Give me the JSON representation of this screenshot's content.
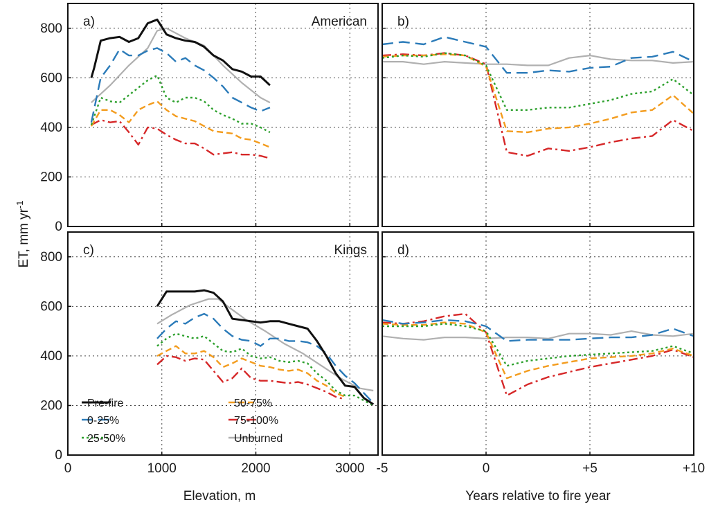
{
  "figure": {
    "ylabel": "ET, mm yr",
    "ylabel_sup": "-1",
    "xlabel_left": "Elevation, m",
    "xlabel_right": "Years relative to fire year"
  },
  "legend": {
    "placement": "bottom-left of panel c",
    "entries": [
      {
        "name": "Pre-fire",
        "color": "#111111",
        "dash": "solid"
      },
      {
        "name": "50-75%",
        "color": "#f39c1e",
        "dash": "dashed"
      },
      {
        "name": "0-25%",
        "color": "#2b7bb9",
        "dash": "long-dash"
      },
      {
        "name": "75-100%",
        "color": "#d62728",
        "dash": "dash-dot"
      },
      {
        "name": "25-50%",
        "color": "#2ca02c",
        "dash": "dotted"
      },
      {
        "name": "Unburned",
        "color": "#b0b0b0",
        "dash": "solid"
      }
    ]
  },
  "chart_data": [
    {
      "panel": "a)",
      "title": "American",
      "type": "line",
      "xlim": [
        0,
        3300
      ],
      "ylim": [
        0,
        900
      ],
      "xticks": [
        0,
        1000,
        2000,
        3000
      ],
      "xtick_labels": [
        "",
        "",
        "",
        ""
      ],
      "yticks": [
        0,
        200,
        400,
        600,
        800
      ],
      "ytick_labels": [
        "0",
        "200",
        "400",
        "600",
        "800"
      ],
      "grid": true,
      "series": [
        {
          "name": "Pre-fire",
          "x": [
            250,
            280,
            350,
            450,
            550,
            650,
            750,
            850,
            950,
            1050,
            1150,
            1250,
            1350,
            1450,
            1550,
            1650,
            1750,
            1850,
            1950,
            2050,
            2150
          ],
          "y": [
            600,
            640,
            750,
            760,
            765,
            745,
            760,
            820,
            835,
            775,
            760,
            750,
            745,
            725,
            690,
            670,
            635,
            625,
            605,
            605,
            570
          ]
        },
        {
          "name": "0-25%",
          "x": [
            250,
            350,
            450,
            550,
            650,
            750,
            850,
            950,
            1050,
            1150,
            1250,
            1350,
            1450,
            1550,
            1650,
            1750,
            1850,
            1950,
            2050,
            2150
          ],
          "y": [
            420,
            600,
            650,
            715,
            690,
            690,
            710,
            720,
            700,
            665,
            680,
            650,
            630,
            600,
            565,
            520,
            500,
            480,
            465,
            480
          ]
        },
        {
          "name": "25-50%",
          "x": [
            250,
            350,
            450,
            550,
            650,
            750,
            850,
            950,
            1050,
            1150,
            1250,
            1350,
            1450,
            1550,
            1650,
            1750,
            1850,
            1950,
            2050,
            2150
          ],
          "y": [
            410,
            520,
            505,
            500,
            530,
            560,
            590,
            610,
            520,
            500,
            520,
            520,
            505,
            470,
            450,
            435,
            415,
            415,
            400,
            380
          ]
        },
        {
          "name": "50-75%",
          "x": [
            250,
            350,
            450,
            550,
            650,
            750,
            850,
            950,
            1050,
            1150,
            1250,
            1350,
            1450,
            1550,
            1650,
            1750,
            1850,
            1950,
            2050,
            2150
          ],
          "y": [
            405,
            470,
            470,
            450,
            420,
            470,
            490,
            505,
            470,
            445,
            435,
            425,
            405,
            385,
            380,
            375,
            355,
            350,
            335,
            320
          ]
        },
        {
          "name": "75-100%",
          "x": [
            250,
            350,
            450,
            550,
            650,
            750,
            850,
            950,
            1050,
            1150,
            1250,
            1350,
            1450,
            1550,
            1650,
            1750,
            1850,
            1950,
            2050,
            2150
          ],
          "y": [
            410,
            430,
            420,
            425,
            380,
            330,
            400,
            395,
            370,
            350,
            335,
            335,
            315,
            290,
            295,
            300,
            290,
            290,
            285,
            275
          ]
        },
        {
          "name": "Unburned",
          "x": [
            250,
            450,
            650,
            850,
            950,
            1050,
            1250,
            1450,
            1650,
            1850,
            2050,
            2150
          ],
          "y": [
            500,
            570,
            650,
            720,
            790,
            800,
            760,
            730,
            650,
            580,
            520,
            500
          ]
        }
      ]
    },
    {
      "panel": "b)",
      "title": "",
      "type": "line",
      "xlim": [
        -5,
        10
      ],
      "ylim": [
        0,
        900
      ],
      "xticks": [
        -5,
        0,
        5,
        10
      ],
      "xtick_labels": [
        "",
        "",
        "",
        ""
      ],
      "yticks": [
        0,
        200,
        400,
        600,
        800
      ],
      "ytick_labels": [
        "",
        "",
        "",
        "",
        ""
      ],
      "grid": true,
      "series": [
        {
          "name": "0-25%",
          "x": [
            -5,
            -4,
            -3,
            -2,
            -1,
            0,
            1,
            2,
            3,
            4,
            5,
            6,
            7,
            8,
            9,
            10
          ],
          "y": [
            735,
            745,
            735,
            765,
            745,
            725,
            620,
            620,
            630,
            625,
            640,
            645,
            680,
            685,
            705,
            665
          ]
        },
        {
          "name": "25-50%",
          "x": [
            -5,
            -4,
            -3,
            -2,
            -1,
            0,
            1,
            2,
            3,
            4,
            5,
            6,
            7,
            8,
            9,
            10
          ],
          "y": [
            680,
            690,
            685,
            700,
            690,
            650,
            470,
            470,
            480,
            480,
            495,
            510,
            535,
            545,
            595,
            530
          ]
        },
        {
          "name": "50-75%",
          "x": [
            -5,
            -4,
            -3,
            -2,
            -1,
            0,
            1,
            2,
            3,
            4,
            5,
            6,
            7,
            8,
            9,
            10
          ],
          "y": [
            685,
            690,
            690,
            695,
            690,
            645,
            385,
            380,
            395,
            400,
            415,
            435,
            460,
            470,
            530,
            455
          ]
        },
        {
          "name": "75-100%",
          "x": [
            -5,
            -4,
            -3,
            -2,
            -1,
            0,
            1,
            2,
            3,
            4,
            5,
            6,
            7,
            8,
            9,
            10
          ],
          "y": [
            690,
            695,
            690,
            700,
            690,
            655,
            300,
            285,
            315,
            305,
            320,
            340,
            355,
            365,
            430,
            385
          ]
        },
        {
          "name": "Unburned",
          "x": [
            -5,
            -4,
            -3,
            -2,
            -1,
            0,
            1,
            2,
            3,
            4,
            5,
            6,
            7,
            8,
            9,
            10
          ],
          "y": [
            665,
            665,
            655,
            665,
            660,
            655,
            655,
            650,
            650,
            680,
            690,
            675,
            670,
            670,
            660,
            665
          ]
        }
      ]
    },
    {
      "panel": "c)",
      "title": "Kings",
      "type": "line",
      "xlim": [
        0,
        3300
      ],
      "ylim": [
        0,
        900
      ],
      "xticks": [
        0,
        1000,
        2000,
        3000
      ],
      "xtick_labels": [
        "0",
        "1000",
        "2000",
        "3000"
      ],
      "yticks": [
        0,
        200,
        400,
        600,
        800
      ],
      "ytick_labels": [
        "0",
        "200",
        "400",
        "600",
        "800"
      ],
      "grid": true,
      "series": [
        {
          "name": "Pre-fire",
          "x": [
            950,
            1050,
            1150,
            1250,
            1350,
            1450,
            1550,
            1650,
            1750,
            1850,
            1950,
            2050,
            2150,
            2250,
            2350,
            2450,
            2550,
            2650,
            2750,
            2850,
            2950,
            3050,
            3150,
            3250
          ],
          "y": [
            600,
            660,
            660,
            660,
            660,
            665,
            655,
            620,
            550,
            545,
            540,
            535,
            540,
            540,
            530,
            520,
            510,
            460,
            400,
            330,
            280,
            275,
            230,
            205
          ]
        },
        {
          "name": "0-25%",
          "x": [
            950,
            1050,
            1150,
            1250,
            1350,
            1450,
            1550,
            1650,
            1750,
            1850,
            1950,
            2050,
            2150,
            2250,
            2350,
            2450,
            2550,
            2650,
            2750,
            2850,
            2950,
            3050,
            3150,
            3250
          ],
          "y": [
            470,
            510,
            540,
            530,
            555,
            570,
            550,
            510,
            480,
            465,
            460,
            440,
            470,
            470,
            460,
            460,
            455,
            440,
            410,
            360,
            320,
            290,
            250,
            210
          ]
        },
        {
          "name": "25-50%",
          "x": [
            950,
            1050,
            1150,
            1250,
            1350,
            1450,
            1550,
            1650,
            1750,
            1850,
            1950,
            2050,
            2150,
            2250,
            2350,
            2450,
            2550,
            2650,
            2750,
            2850,
            2950,
            3050,
            3150,
            3250
          ],
          "y": [
            440,
            470,
            490,
            480,
            470,
            480,
            450,
            420,
            415,
            430,
            400,
            390,
            395,
            380,
            375,
            380,
            370,
            330,
            300,
            260,
            240,
            240,
            220,
            200
          ]
        },
        {
          "name": "50-75%",
          "x": [
            950,
            1050,
            1150,
            1250,
            1350,
            1450,
            1550,
            1650,
            1750,
            1850,
            1950,
            2050,
            2150,
            2250,
            2350,
            2450,
            2550,
            2650,
            2750,
            2850,
            2950
          ],
          "y": [
            400,
            420,
            440,
            410,
            410,
            420,
            395,
            355,
            370,
            390,
            375,
            360,
            355,
            345,
            340,
            345,
            330,
            300,
            280,
            250,
            235
          ]
        },
        {
          "name": "75-100%",
          "x": [
            950,
            1050,
            1150,
            1250,
            1350,
            1450,
            1550,
            1650,
            1750,
            1850,
            1950,
            2050,
            2150,
            2250,
            2350,
            2450,
            2550,
            2650,
            2750,
            2850,
            2950
          ],
          "y": [
            365,
            400,
            395,
            380,
            390,
            385,
            340,
            295,
            310,
            350,
            310,
            300,
            300,
            295,
            290,
            295,
            285,
            270,
            255,
            235,
            225
          ]
        },
        {
          "name": "Unburned",
          "x": [
            950,
            1100,
            1300,
            1500,
            1600,
            1700,
            1900,
            2100,
            2300,
            2500,
            2700,
            2900,
            3100,
            3250
          ],
          "y": [
            530,
            565,
            605,
            630,
            630,
            600,
            545,
            500,
            450,
            410,
            360,
            310,
            270,
            260
          ]
        }
      ]
    },
    {
      "panel": "d)",
      "title": "",
      "type": "line",
      "xlim": [
        -5,
        10
      ],
      "ylim": [
        0,
        900
      ],
      "xticks": [
        -5,
        0,
        5,
        10
      ],
      "xtick_labels": [
        "-5",
        "0",
        "+5",
        "+10"
      ],
      "yticks": [
        0,
        200,
        400,
        600,
        800
      ],
      "ytick_labels": [
        "",
        "",
        "",
        "",
        ""
      ],
      "grid": true,
      "series": [
        {
          "name": "0-25%",
          "x": [
            -5,
            -4,
            -3,
            -2,
            -1,
            0,
            1,
            2,
            3,
            4,
            5,
            6,
            7,
            8,
            9,
            10
          ],
          "y": [
            545,
            530,
            535,
            545,
            540,
            520,
            460,
            465,
            465,
            465,
            470,
            475,
            475,
            485,
            510,
            480
          ]
        },
        {
          "name": "25-50%",
          "x": [
            -5,
            -4,
            -3,
            -2,
            -1,
            0,
            1,
            2,
            3,
            4,
            5,
            6,
            7,
            8,
            9,
            10
          ],
          "y": [
            520,
            520,
            520,
            530,
            520,
            500,
            360,
            380,
            390,
            400,
            405,
            410,
            415,
            420,
            440,
            410
          ]
        },
        {
          "name": "50-75%",
          "x": [
            -5,
            -4,
            -3,
            -2,
            -1,
            0,
            1,
            2,
            3,
            4,
            5,
            6,
            7,
            8,
            9,
            10
          ],
          "y": [
            530,
            525,
            525,
            535,
            530,
            495,
            310,
            340,
            360,
            375,
            390,
            395,
            400,
            410,
            430,
            400
          ]
        },
        {
          "name": "75-100%",
          "x": [
            -5,
            -4,
            -3,
            -2,
            -1,
            0,
            1,
            2,
            3,
            4,
            5,
            6,
            7,
            8,
            9,
            10
          ],
          "y": [
            535,
            530,
            540,
            560,
            570,
            495,
            240,
            285,
            315,
            335,
            355,
            370,
            385,
            400,
            425,
            395
          ]
        },
        {
          "name": "Unburned",
          "x": [
            -5,
            -4,
            -3,
            -2,
            -1,
            0,
            1,
            2,
            3,
            4,
            5,
            6,
            7,
            8,
            9,
            10
          ],
          "y": [
            480,
            470,
            465,
            475,
            475,
            470,
            475,
            475,
            470,
            490,
            490,
            485,
            500,
            485,
            480,
            490
          ]
        }
      ]
    }
  ]
}
